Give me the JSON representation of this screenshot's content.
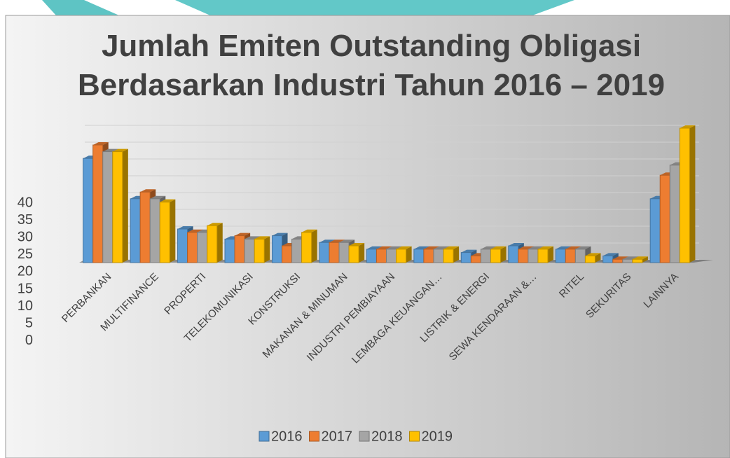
{
  "chart_data": {
    "type": "bar",
    "title_lines": [
      "Jumlah Emiten Outstanding Obligasi",
      "Berdasarkan Industri Tahun 2016 – 2019"
    ],
    "categories": [
      "PERBANKAN",
      "MULTIFINANCE",
      "PROPERTI",
      "TELEKOMUNIKASI",
      "KONSTRUKSI",
      "MAKANAN & MINUMAN",
      "INDUSTRI PEMBIAYAAN",
      "LEMBAGA KEUANGAN…",
      "LISTRIK & ENERGI",
      "SEWA KENDARAAN &…",
      "RITEL",
      "SEKURITAS",
      "LAINNYA"
    ],
    "series": [
      {
        "name": "2016",
        "color": "#5b9bd5",
        "values": [
          31,
          19,
          10,
          7,
          8,
          6,
          4,
          4,
          3,
          5,
          4,
          2,
          19
        ]
      },
      {
        "name": "2017",
        "color": "#ed7d31",
        "values": [
          35,
          21,
          9,
          8,
          5,
          6,
          4,
          4,
          2,
          4,
          4,
          1,
          26
        ]
      },
      {
        "name": "2018",
        "color": "#a5a5a5",
        "values": [
          33,
          19,
          9,
          7,
          7,
          6,
          4,
          4,
          4,
          4,
          4,
          1,
          29
        ]
      },
      {
        "name": "2019",
        "color": "#ffc000",
        "values": [
          33,
          18,
          11,
          7,
          9,
          5,
          4,
          4,
          4,
          4,
          2,
          1,
          40
        ]
      }
    ],
    "ylim": [
      0,
      40
    ],
    "yticks": [
      0,
      5,
      10,
      15,
      20,
      25,
      30,
      35,
      40
    ],
    "grid": true,
    "legend": "bottom"
  }
}
